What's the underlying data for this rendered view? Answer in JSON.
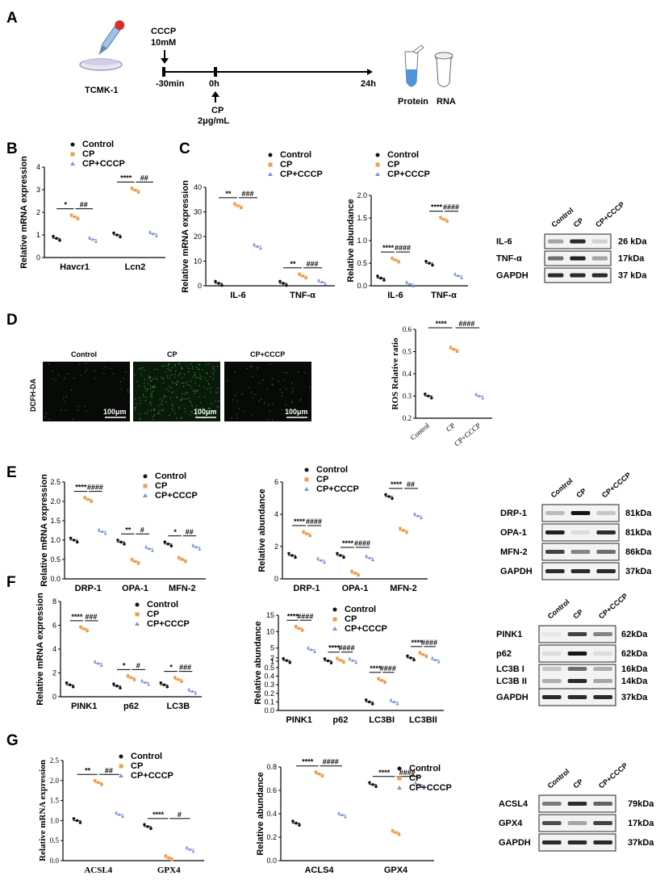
{
  "panels": [
    "A",
    "B",
    "C",
    "D",
    "E",
    "F",
    "G"
  ],
  "colors": {
    "control": "#111111",
    "cp": "#ef9d4f",
    "cccp": "#7f95d6",
    "green": "#3fae3a",
    "band": "#151515"
  },
  "legend": {
    "control": "Control",
    "cp": "CP",
    "cccp": "CP+CCCP"
  },
  "A": {
    "cell": "TCMK-1",
    "cccp": "CCCP",
    "cccp_dose": "10mM",
    "t0": "-30min",
    "t1": "0h",
    "t2": "24h",
    "cp": "CP",
    "cp_dose": "2μg/mL",
    "protein": "Protein",
    "rna": "RNA"
  },
  "D": {
    "row_label": "DCFH-DA",
    "cols": [
      "Control",
      "CP",
      "CP+CCCP"
    ],
    "scale": "100μm"
  },
  "blots": {
    "C": {
      "lanes": [
        "Control",
        "CP",
        "CP+CCCP"
      ],
      "rows": [
        {
          "name": "IL-6",
          "kda": "26 kDa"
        },
        {
          "name": "TNF-α",
          "kda": "17kDa"
        },
        {
          "name": "GAPDH",
          "kda": "37 kDa"
        }
      ]
    },
    "E": {
      "lanes": [
        "Control",
        "CP",
        "CP+CCCP"
      ],
      "rows": [
        {
          "name": "DRP-1",
          "kda": "81kDa"
        },
        {
          "name": "OPA-1",
          "kda": "81kDa"
        },
        {
          "name": "MFN-2",
          "kda": "86kDa"
        },
        {
          "name": "GAPDH",
          "kda": "37kDa"
        }
      ]
    },
    "F": {
      "lanes": [
        "Control",
        "CP",
        "CP+CCCP"
      ],
      "rows": [
        {
          "name": "PINK1",
          "kda": "62kDa"
        },
        {
          "name": "p62",
          "kda": "62kDa"
        },
        {
          "name": "LC3B I",
          "kda": "16kDa"
        },
        {
          "name": "LC3B II",
          "kda": "14kDa"
        },
        {
          "name": "GAPDH",
          "kda": "37kDa"
        }
      ]
    },
    "G": {
      "lanes": [
        "Control",
        "CP",
        "CP+CCCP"
      ],
      "rows": [
        {
          "name": "ACSL4",
          "kda": "79kDa"
        },
        {
          "name": "GPX4",
          "kda": "17kDa"
        },
        {
          "name": "GAPDH",
          "kda": "37kDa"
        }
      ]
    }
  },
  "chart_data": [
    {
      "id": "B",
      "type": "scatter",
      "ylabel": "Relative mRNA expression",
      "ylim": [
        0,
        4
      ],
      "yticks": [
        "0",
        "1",
        "2",
        "3",
        "4"
      ],
      "categories": [
        "Havcr1",
        "Lcn2"
      ],
      "series": [
        {
          "name": "Control",
          "values": [
            0.85,
            1.0
          ]
        },
        {
          "name": "CP",
          "values": [
            1.8,
            2.98
          ]
        },
        {
          "name": "CP+CCCP",
          "values": [
            0.8,
            1.05
          ]
        }
      ],
      "sig": [
        {
          "cat": 0,
          "a": "*",
          "b": "##"
        },
        {
          "cat": 1,
          "a": "****",
          "b": "##"
        }
      ]
    },
    {
      "id": "C1",
      "type": "scatter",
      "ylabel": "Relative mRNA expression",
      "ylim": [
        0,
        40
      ],
      "yticks": [
        "0",
        "10",
        "20",
        "30",
        "40"
      ],
      "categories": [
        "IL-6",
        "TNF-α"
      ],
      "series": [
        {
          "name": "Control",
          "values": [
            1,
            1
          ]
        },
        {
          "name": "CP",
          "values": [
            32.5,
            4
          ]
        },
        {
          "name": "CP+CCCP",
          "values": [
            16,
            1.5
          ]
        }
      ],
      "sig": [
        {
          "cat": 0,
          "a": "**",
          "b": "###"
        },
        {
          "cat": 1,
          "a": "**",
          "b": "###"
        }
      ]
    },
    {
      "id": "C2",
      "type": "scatter",
      "ylabel": "Relative abundance",
      "ylim": [
        0,
        2
      ],
      "yticks": [
        "0.0",
        "0.5",
        "1.0",
        "1.5",
        "2.0"
      ],
      "categories": [
        "IL-6",
        "TNF-α"
      ],
      "series": [
        {
          "name": "Control",
          "values": [
            0.17,
            0.5
          ]
        },
        {
          "name": "CP",
          "values": [
            0.57,
            1.47
          ]
        },
        {
          "name": "CP+CCCP",
          "values": [
            0.04,
            0.22
          ]
        }
      ],
      "sig": [
        {
          "cat": 0,
          "a": "****",
          "b": "####"
        },
        {
          "cat": 1,
          "a": "****",
          "b": "####"
        }
      ]
    },
    {
      "id": "D",
      "type": "scatter",
      "ylabel": "ROS Relative ratio",
      "ylim": [
        0.2,
        0.6
      ],
      "yticks": [
        "0.2",
        "0.3",
        "0.4",
        "0.5",
        "0.6"
      ],
      "categories": [
        "Control",
        "CP",
        "CP+CCCP"
      ],
      "series": [
        {
          "name": "Control",
          "values": [
            0.3
          ]
        },
        {
          "name": "CP",
          "values": [
            0.51
          ]
        },
        {
          "name": "CP+CCCP",
          "values": [
            0.3
          ]
        }
      ],
      "sig": [
        {
          "a": "****",
          "b": "####"
        }
      ]
    },
    {
      "id": "E1",
      "type": "scatter",
      "ylabel": "Relative mRNA expression",
      "ylim": [
        0,
        2.5
      ],
      "yticks": [
        "0.0",
        "0.5",
        "1.0",
        "1.5",
        "2.0",
        "2.5"
      ],
      "categories": [
        "DRP-1",
        "OPA-1",
        "MFN-2"
      ],
      "series": [
        {
          "name": "Control",
          "values": [
            1.0,
            0.95,
            0.9
          ]
        },
        {
          "name": "CP",
          "values": [
            2.05,
            0.45,
            0.5
          ]
        },
        {
          "name": "CP+CCCP",
          "values": [
            1.22,
            0.78,
            0.82
          ]
        }
      ],
      "sig": [
        {
          "cat": 0,
          "a": "****",
          "b": "####"
        },
        {
          "cat": 1,
          "a": "**",
          "b": "#"
        },
        {
          "cat": 2,
          "a": "*",
          "b": "##"
        }
      ]
    },
    {
      "id": "E2",
      "type": "scatter",
      "ylabel": "Relative abundance",
      "ylim": [
        0,
        6
      ],
      "yticks": [
        "0",
        "2",
        "4",
        "6"
      ],
      "categories": [
        "DRP-1",
        "OPA-1",
        "MFN-2"
      ],
      "series": [
        {
          "name": "Control",
          "values": [
            1.45,
            1.45,
            5.1
          ]
        },
        {
          "name": "CP",
          "values": [
            2.8,
            0.35,
            3.0
          ]
        },
        {
          "name": "CP+CCCP",
          "values": [
            1.15,
            1.3,
            3.9
          ]
        }
      ],
      "sig": [
        {
          "cat": 0,
          "a": "****",
          "b": "####"
        },
        {
          "cat": 1,
          "a": "****",
          "b": "####"
        },
        {
          "cat": 2,
          "a": "****",
          "b": "##"
        }
      ]
    },
    {
      "id": "F1",
      "type": "scatter",
      "ylabel": "Relative mRNA expression",
      "ylim": [
        0,
        8
      ],
      "yticks": [
        "0",
        "2",
        "4",
        "6",
        "8"
      ],
      "categories": [
        "PINK1",
        "p62",
        "LC3B"
      ],
      "series": [
        {
          "name": "Control",
          "values": [
            1.0,
            0.9,
            1.0
          ]
        },
        {
          "name": "CP",
          "values": [
            5.7,
            1.6,
            1.45
          ]
        },
        {
          "name": "CP+CCCP",
          "values": [
            2.8,
            1.2,
            0.45
          ]
        }
      ],
      "sig": [
        {
          "cat": 0,
          "a": "****",
          "b": "###"
        },
        {
          "cat": 1,
          "a": "*",
          "b": "#"
        },
        {
          "cat": 2,
          "a": "*",
          "b": "###"
        }
      ]
    },
    {
      "id": "F2",
      "type": "scatter",
      "ylabel": "Relative abundance",
      "ylim": [
        0,
        15
      ],
      "yticks": [
        "0.0",
        "0.1",
        "0.2",
        "0.3",
        "0.4",
        "0.5",
        "1",
        "2",
        "5",
        "10",
        "15"
      ],
      "categories": [
        "PINK1",
        "p62",
        "LC3BI",
        "LC3BII"
      ],
      "series": [
        {
          "name": "Control",
          "values": [
            1.2,
            1.1,
            0.1,
            2.0
          ]
        },
        {
          "name": "CP",
          "values": [
            11,
            1.3,
            0.35,
            3.0
          ]
        },
        {
          "name": "CP+CCCP",
          "values": [
            4.5,
            1.2,
            0.1,
            1.4
          ]
        }
      ],
      "sig": [
        {
          "cat": 0,
          "a": "****",
          "b": "####"
        },
        {
          "cat": 1,
          "a": "****",
          "b": "####"
        },
        {
          "cat": 2,
          "a": "****",
          "b": "####"
        },
        {
          "cat": 3,
          "a": "****",
          "b": "####"
        }
      ]
    },
    {
      "id": "G1",
      "type": "scatter",
      "ylabel": "Relative mRNA expression",
      "ylim": [
        0,
        2.5
      ],
      "yticks": [
        "0.0",
        "0.5",
        "1.0",
        "1.5",
        "2.0",
        "2.5"
      ],
      "categories": [
        "ACSL4",
        "GPX4"
      ],
      "series": [
        {
          "name": "Control",
          "values": [
            1.0,
            0.85
          ]
        },
        {
          "name": "CP",
          "values": [
            1.95,
            0.07
          ]
        },
        {
          "name": "CP+CCCP",
          "values": [
            1.15,
            0.28
          ]
        }
      ],
      "sig": [
        {
          "cat": 0,
          "a": "**",
          "b": "##"
        },
        {
          "cat": 1,
          "a": "****",
          "b": "#"
        }
      ]
    },
    {
      "id": "G2",
      "type": "scatter",
      "ylabel": "Relative abundance",
      "ylim": [
        0,
        0.8
      ],
      "yticks": [
        "0.0",
        "0.2",
        "0.4",
        "0.6",
        "0.8"
      ],
      "categories": [
        "ACLS4",
        "GPX4"
      ],
      "series": [
        {
          "name": "Control",
          "values": [
            0.32,
            0.65
          ]
        },
        {
          "name": "CP",
          "values": [
            0.74,
            0.24
          ]
        },
        {
          "name": "CP+CCCP",
          "values": [
            0.39,
            0.65
          ]
        }
      ],
      "sig": [
        {
          "cat": 0,
          "a": "****",
          "b": "####"
        },
        {
          "cat": 1,
          "a": "****",
          "b": "####"
        }
      ]
    }
  ]
}
